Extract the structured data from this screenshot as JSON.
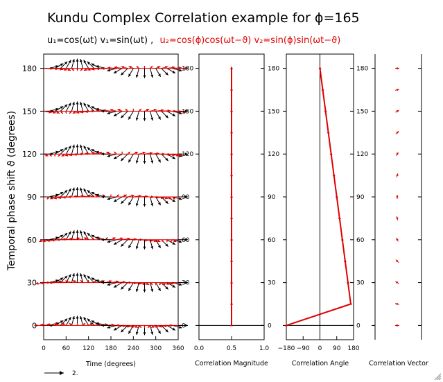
{
  "title": "Kundu Complex Correlation example for ϕ=165",
  "subtitle": {
    "black": "u₁=cos(ωt) v₁=sin(ωt) ,",
    "red": "u₂=cos(ϕ)cos(ωt−ϑ) v₂=sin(ϕ)sin(ωt−ϑ)"
  },
  "colors": {
    "series1": "#000000",
    "series2": "#e00000",
    "axis": "#000000"
  },
  "icons": {
    "resize_grip": "resize-grip-icon"
  },
  "chart_data": [
    {
      "type": "vector",
      "panel": "time-series vectors",
      "ylabel": "Temporal phase shift ϑ (degrees)",
      "xlabel": "Time (degrees)",
      "xlim": [
        0,
        360
      ],
      "ylim": [
        -10,
        190
      ],
      "x_ticks": [
        0,
        60,
        120,
        180,
        240,
        300,
        360
      ],
      "x_tick_labels": [
        "0",
        "60",
        "120",
        "180",
        "240",
        "300",
        "360"
      ],
      "y_ticks": [
        0,
        30,
        60,
        90,
        120,
        150,
        180
      ],
      "y_tick_labels": [
        "0",
        "30",
        "60",
        "90",
        "120",
        "150",
        "180"
      ],
      "phi": 165,
      "time_samples_deg": [
        0,
        15,
        30,
        45,
        60,
        75,
        90,
        105,
        120,
        135,
        150,
        165,
        180,
        195,
        210,
        225,
        240,
        255,
        270,
        285,
        300,
        315,
        330,
        345,
        360
      ],
      "reference_vector_label": "2.",
      "series": [
        {
          "name": "u₁,v₁",
          "color": "#000000"
        },
        {
          "name": "u₂,v₂",
          "color": "#e00000"
        }
      ]
    },
    {
      "type": "line",
      "panel": "correlation magnitude",
      "xlabel": "Correlation Magnitude",
      "xlim": [
        0,
        1
      ],
      "x_tick_labels": [
        "0.0",
        "0.5",
        "1.0"
      ],
      "x_ticks": [
        0,
        0.5,
        1
      ],
      "y": [
        0,
        15,
        30,
        45,
        60,
        75,
        90,
        105,
        120,
        135,
        150,
        165,
        180
      ],
      "values": [
        0.5,
        0.5,
        0.5,
        0.5,
        0.5,
        0.5,
        0.5,
        0.5,
        0.5,
        0.5,
        0.5,
        0.5,
        0.5
      ]
    },
    {
      "type": "line",
      "panel": "correlation angle",
      "xlabel": "Correlation Angle",
      "xlim": [
        -180,
        180
      ],
      "x_ticks": [
        -180,
        -90,
        0,
        90,
        180
      ],
      "x_tick_labels": [
        "−180",
        "−90",
        "0",
        "90",
        "180"
      ],
      "y": [
        0,
        15,
        30,
        45,
        60,
        75,
        90,
        105,
        120,
        135,
        150,
        165,
        180
      ],
      "values": [
        -180,
        165,
        150,
        135,
        120,
        105,
        90,
        75,
        60,
        45,
        30,
        15,
        0
      ]
    },
    {
      "type": "vector",
      "panel": "correlation vector",
      "xlabel": "Correlation Vector",
      "y": [
        0,
        15,
        30,
        45,
        60,
        75,
        90,
        105,
        120,
        135,
        150,
        165,
        180
      ],
      "magnitude": [
        0.5,
        0.5,
        0.5,
        0.5,
        0.5,
        0.5,
        0.5,
        0.5,
        0.5,
        0.5,
        0.5,
        0.5,
        0.5
      ],
      "angle_deg": [
        180,
        165,
        150,
        135,
        120,
        105,
        90,
        75,
        60,
        45,
        30,
        15,
        0
      ]
    }
  ]
}
